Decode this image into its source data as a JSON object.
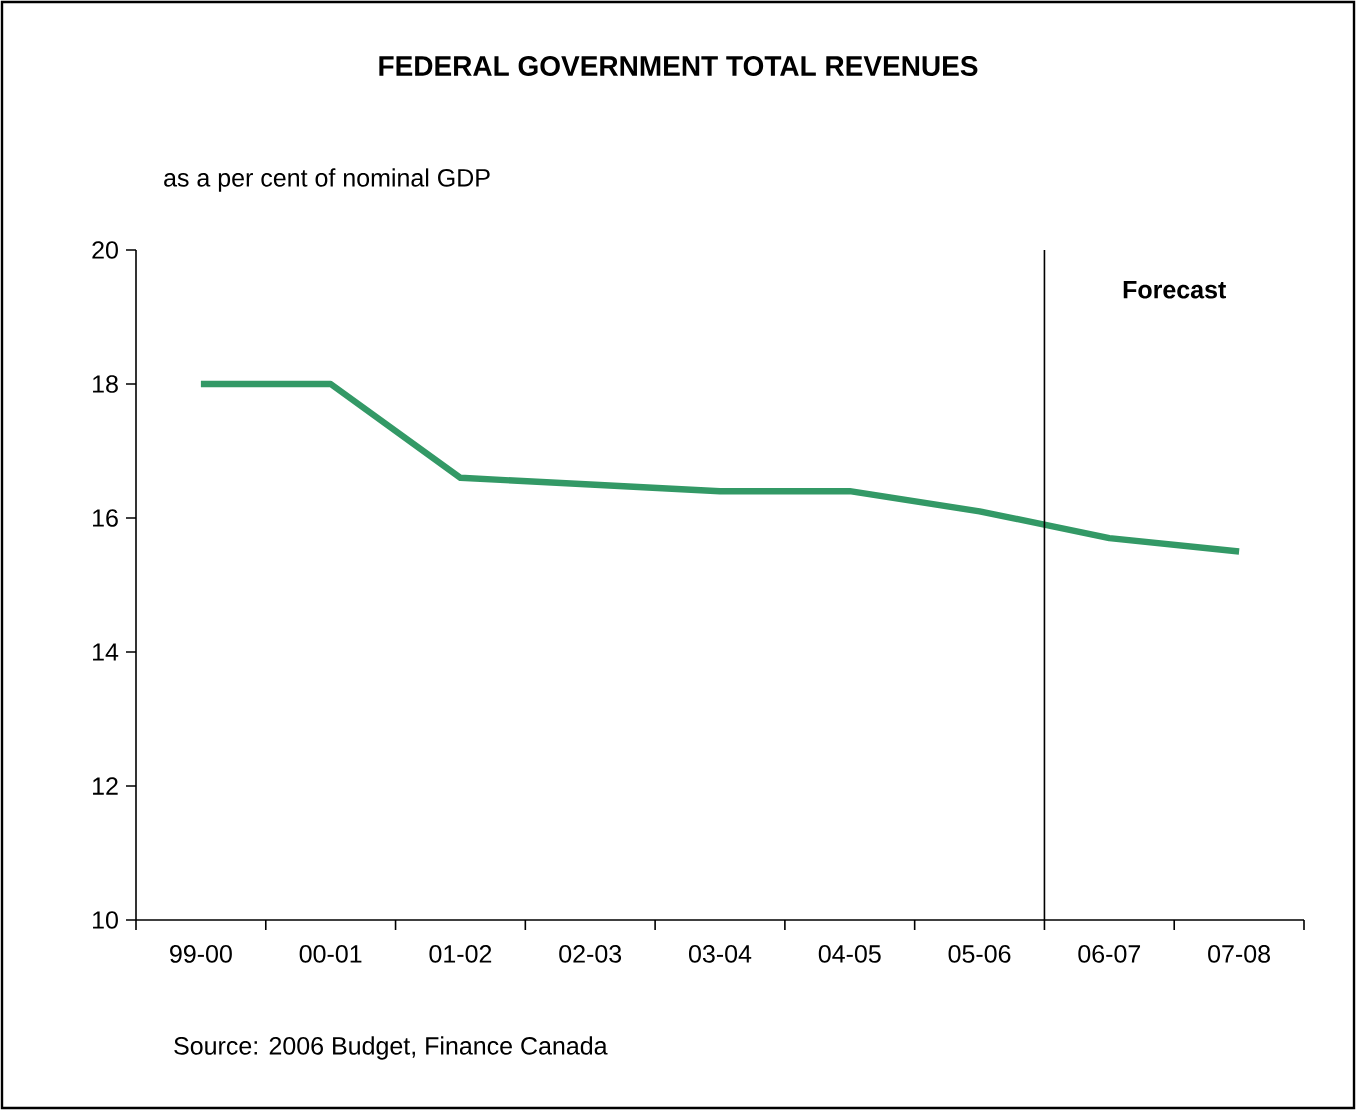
{
  "chart_data": {
    "type": "line",
    "title": "FEDERAL GOVERNMENT TOTAL REVENUES",
    "subtitle": "as a per cent of nominal GDP",
    "categories": [
      "99-00",
      "00-01",
      "01-02",
      "02-03",
      "03-04",
      "04-05",
      "05-06",
      "06-07",
      "07-08"
    ],
    "series": [
      {
        "color": "#339966",
        "values": [
          18.0,
          18.0,
          16.6,
          16.5,
          16.4,
          16.4,
          16.1,
          15.7,
          15.5
        ]
      }
    ],
    "ylim": [
      10,
      20
    ],
    "yticks": [
      10,
      12,
      14,
      16,
      18,
      20
    ],
    "grid": false,
    "marker": "none",
    "line_style": "solid",
    "annotations": [
      "Forecast",
      "Source: 2006 Budget, Finance Canada"
    ]
  }
}
